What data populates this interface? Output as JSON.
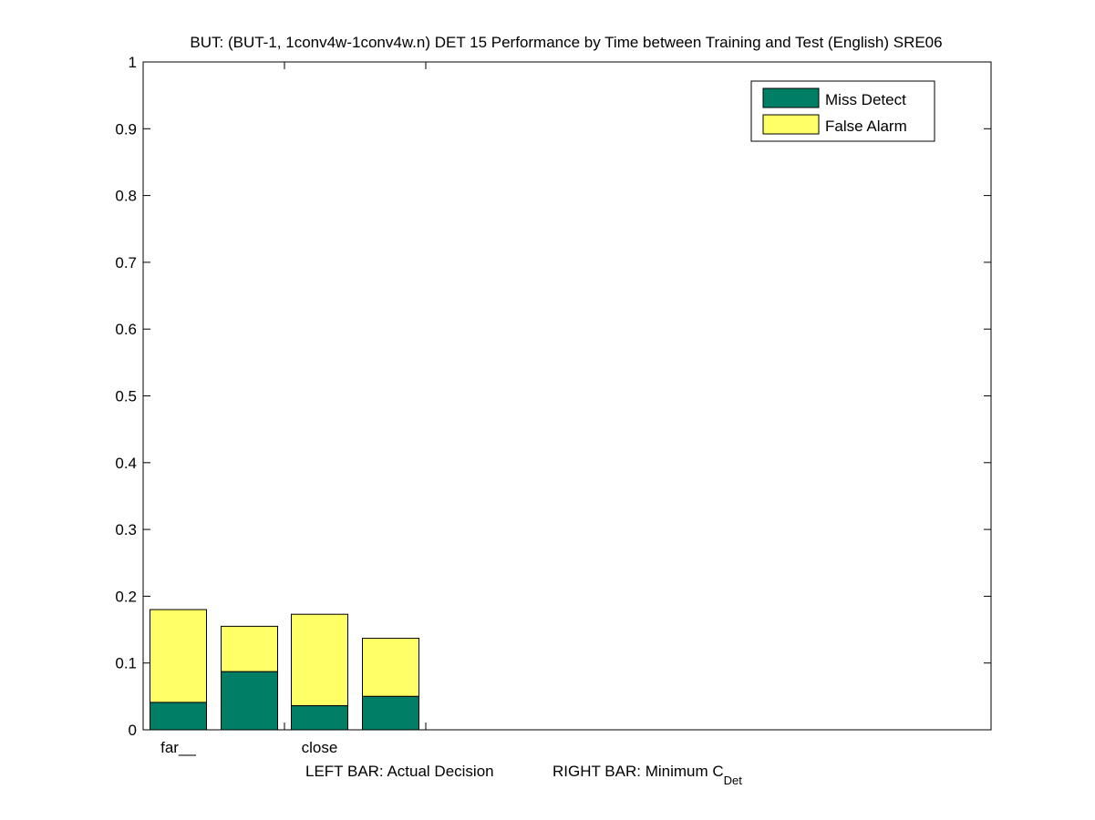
{
  "chart_data": {
    "type": "bar",
    "stacked": true,
    "title": "BUT: (BUT-1, 1conv4w-1conv4w.n) DET 15 Performance by Time between Training and Test (English) SRE06",
    "xlabel_left": "LEFT BAR: Actual Decision",
    "xlabel_right": "RIGHT BAR: Minimum C",
    "xlabel_right_sub": "Det",
    "ylabel": "",
    "ylim": [
      0,
      1
    ],
    "yticks": [
      "0",
      "0.1",
      "0.2",
      "0.3",
      "0.4",
      "0.5",
      "0.6",
      "0.7",
      "0.8",
      "0.9",
      "1"
    ],
    "categories": [
      "far__",
      "close"
    ],
    "bars": [
      {
        "category": "far__",
        "side": "left",
        "miss": 0.041,
        "false_alarm": 0.139
      },
      {
        "category": "far__",
        "side": "right",
        "miss": 0.087,
        "false_alarm": 0.068
      },
      {
        "category": "close",
        "side": "left",
        "miss": 0.036,
        "false_alarm": 0.137
      },
      {
        "category": "close",
        "side": "right",
        "miss": 0.05,
        "false_alarm": 0.087
      }
    ],
    "series": [
      {
        "name": "Miss Detect",
        "color": "#007f66"
      },
      {
        "name": "False Alarm",
        "color": "#ffff66"
      }
    ],
    "legend_position": "top-right",
    "grid": false
  }
}
